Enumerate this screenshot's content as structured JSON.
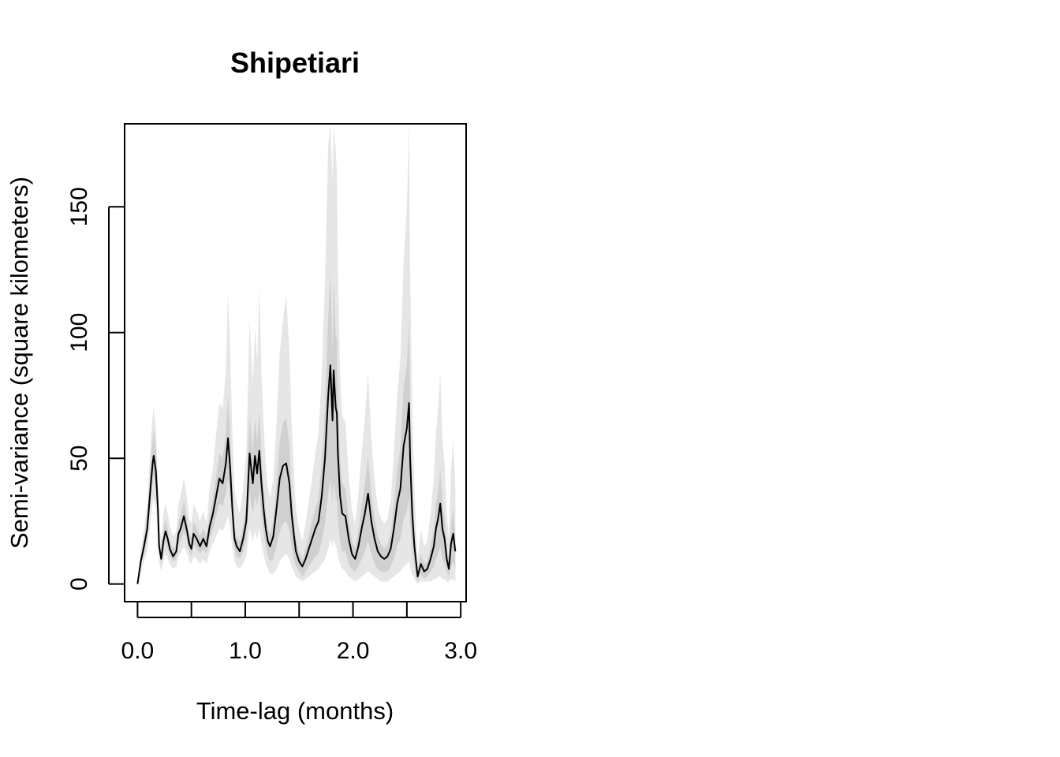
{
  "chart_data": {
    "type": "line",
    "title": "Shipetiari",
    "xlabel": "Time-lag (months)",
    "ylabel": "Semi-variance (square kilometers)",
    "xlim": [
      -0.12,
      3.05
    ],
    "ylim": [
      -7,
      183
    ],
    "xticks": [
      0.0,
      0.5,
      1.0,
      1.5,
      2.0,
      2.5,
      3.0
    ],
    "xtick_labels": [
      "0.0",
      "",
      "1.0",
      "",
      "2.0",
      "",
      "3.0"
    ],
    "yticks": [
      0,
      50,
      100,
      150
    ],
    "ytick_labels": [
      "0",
      "50",
      "100",
      "150"
    ],
    "grid": false,
    "series": [
      {
        "role": "estimate",
        "color": "#000000",
        "x": [
          0.0,
          0.03,
          0.06,
          0.09,
          0.12,
          0.14,
          0.15,
          0.17,
          0.19,
          0.2,
          0.22,
          0.24,
          0.26,
          0.28,
          0.3,
          0.33,
          0.36,
          0.38,
          0.4,
          0.43,
          0.46,
          0.48,
          0.5,
          0.52,
          0.55,
          0.58,
          0.61,
          0.64,
          0.67,
          0.7,
          0.73,
          0.76,
          0.79,
          0.82,
          0.84,
          0.86,
          0.88,
          0.9,
          0.92,
          0.95,
          0.98,
          1.01,
          1.04,
          1.07,
          1.09,
          1.11,
          1.13,
          1.15,
          1.17,
          1.19,
          1.21,
          1.23,
          1.26,
          1.29,
          1.32,
          1.35,
          1.38,
          1.41,
          1.43,
          1.45,
          1.47,
          1.5,
          1.53,
          1.56,
          1.59,
          1.62,
          1.65,
          1.68,
          1.71,
          1.74,
          1.77,
          1.79,
          1.81,
          1.82,
          1.84,
          1.85,
          1.86,
          1.88,
          1.9,
          1.93,
          1.96,
          1.99,
          2.02,
          2.05,
          2.08,
          2.11,
          2.14,
          2.17,
          2.2,
          2.23,
          2.26,
          2.29,
          2.32,
          2.35,
          2.38,
          2.41,
          2.44,
          2.47,
          2.5,
          2.52,
          2.53,
          2.55,
          2.57,
          2.6,
          2.63,
          2.66,
          2.69,
          2.72,
          2.75,
          2.77,
          2.79,
          2.81,
          2.83,
          2.85,
          2.87,
          2.89,
          2.91,
          2.93,
          2.95
        ],
        "y": [
          0,
          9,
          15,
          22,
          38,
          48,
          51,
          45,
          29,
          15,
          10,
          17,
          21,
          18,
          14,
          11,
          13,
          20,
          22,
          27,
          21,
          16,
          14,
          20,
          18,
          15,
          18,
          15,
          23,
          28,
          35,
          42,
          40,
          48,
          58,
          46,
          30,
          18,
          15,
          13,
          18,
          25,
          52,
          40,
          51,
          44,
          53,
          40,
          30,
          22,
          17,
          15,
          19,
          30,
          42,
          47,
          48,
          40,
          28,
          20,
          13,
          9,
          7,
          10,
          14,
          18,
          22,
          25,
          35,
          50,
          75,
          87,
          65,
          85,
          70,
          68,
          52,
          35,
          28,
          27,
          18,
          12,
          10,
          15,
          22,
          28,
          36,
          25,
          18,
          13,
          11,
          10,
          11,
          14,
          22,
          32,
          38,
          55,
          62,
          72,
          50,
          28,
          15,
          3,
          8,
          5,
          6,
          10,
          15,
          22,
          26,
          32,
          22,
          18,
          10,
          6,
          16,
          20,
          13
        ]
      }
    ],
    "bands": [
      {
        "role": "outer-interval",
        "color": "#e6e6e6",
        "x": [
          0.0,
          0.03,
          0.06,
          0.09,
          0.12,
          0.14,
          0.15,
          0.17,
          0.19,
          0.2,
          0.22,
          0.24,
          0.26,
          0.28,
          0.3,
          0.33,
          0.36,
          0.38,
          0.4,
          0.43,
          0.46,
          0.48,
          0.5,
          0.52,
          0.55,
          0.58,
          0.61,
          0.64,
          0.67,
          0.7,
          0.73,
          0.76,
          0.79,
          0.82,
          0.84,
          0.86,
          0.88,
          0.9,
          0.92,
          0.95,
          0.98,
          1.01,
          1.04,
          1.07,
          1.09,
          1.11,
          1.13,
          1.15,
          1.17,
          1.19,
          1.21,
          1.23,
          1.26,
          1.29,
          1.32,
          1.35,
          1.38,
          1.41,
          1.43,
          1.45,
          1.47,
          1.5,
          1.53,
          1.56,
          1.59,
          1.62,
          1.65,
          1.68,
          1.71,
          1.74,
          1.77,
          1.79,
          1.81,
          1.82,
          1.84,
          1.85,
          1.86,
          1.88,
          1.9,
          1.93,
          1.96,
          1.99,
          2.02,
          2.05,
          2.08,
          2.11,
          2.14,
          2.17,
          2.2,
          2.23,
          2.26,
          2.29,
          2.32,
          2.35,
          2.38,
          2.41,
          2.44,
          2.47,
          2.5,
          2.52,
          2.53,
          2.55,
          2.57,
          2.6,
          2.63,
          2.66,
          2.69,
          2.72,
          2.75,
          2.77,
          2.79,
          2.81,
          2.83,
          2.85,
          2.87,
          2.89,
          2.91,
          2.93,
          2.95
        ],
        "lower": [
          0,
          5,
          9,
          13,
          25,
          32,
          34,
          30,
          19,
          9,
          5,
          9,
          12,
          10,
          8,
          6,
          7,
          11,
          12,
          15,
          12,
          9,
          8,
          11,
          10,
          8,
          10,
          8,
          13,
          16,
          19,
          22,
          21,
          24,
          27,
          22,
          15,
          9,
          7,
          6,
          8,
          11,
          22,
          17,
          21,
          18,
          22,
          16,
          12,
          8,
          6,
          4,
          4,
          6,
          9,
          11,
          12,
          10,
          7,
          5,
          3,
          2,
          1,
          2,
          3,
          4,
          5,
          6,
          8,
          10,
          14,
          18,
          15,
          18,
          15,
          14,
          11,
          8,
          6,
          5,
          3,
          2,
          1,
          2,
          3,
          4,
          5,
          4,
          3,
          2,
          1,
          1,
          1,
          2,
          3,
          4,
          5,
          7,
          8,
          9,
          7,
          4,
          2,
          0,
          1,
          1,
          1,
          1,
          2,
          2,
          3,
          3,
          2,
          2,
          1,
          1,
          2,
          2,
          1
        ],
        "upper": [
          0,
          13,
          22,
          32,
          55,
          66,
          70,
          62,
          42,
          24,
          18,
          28,
          32,
          28,
          23,
          19,
          21,
          32,
          35,
          42,
          34,
          26,
          24,
          32,
          29,
          25,
          29,
          24,
          38,
          46,
          60,
          72,
          70,
          85,
          117,
          92,
          60,
          38,
          32,
          28,
          38,
          52,
          105,
          80,
          102,
          88,
          118,
          85,
          64,
          48,
          38,
          34,
          42,
          64,
          92,
          105,
          115,
          92,
          64,
          46,
          30,
          22,
          17,
          24,
          33,
          42,
          52,
          60,
          84,
          120,
          175,
          183,
          160,
          183,
          172,
          165,
          125,
          84,
          67,
          64,
          43,
          29,
          24,
          36,
          52,
          66,
          84,
          58,
          42,
          30,
          26,
          24,
          26,
          33,
          52,
          75,
          90,
          128,
          150,
          183,
          125,
          70,
          38,
          9,
          22,
          15,
          17,
          28,
          42,
          60,
          70,
          84,
          58,
          48,
          28,
          18,
          45,
          58,
          38
        ]
      },
      {
        "role": "inner-interval",
        "color": "#d0d0d0",
        "x": [
          0.0,
          0.03,
          0.06,
          0.09,
          0.12,
          0.14,
          0.15,
          0.17,
          0.19,
          0.2,
          0.22,
          0.24,
          0.26,
          0.28,
          0.3,
          0.33,
          0.36,
          0.38,
          0.4,
          0.43,
          0.46,
          0.48,
          0.5,
          0.52,
          0.55,
          0.58,
          0.61,
          0.64,
          0.67,
          0.7,
          0.73,
          0.76,
          0.79,
          0.82,
          0.84,
          0.86,
          0.88,
          0.9,
          0.92,
          0.95,
          0.98,
          1.01,
          1.04,
          1.07,
          1.09,
          1.11,
          1.13,
          1.15,
          1.17,
          1.19,
          1.21,
          1.23,
          1.26,
          1.29,
          1.32,
          1.35,
          1.38,
          1.41,
          1.43,
          1.45,
          1.47,
          1.5,
          1.53,
          1.56,
          1.59,
          1.62,
          1.65,
          1.68,
          1.71,
          1.74,
          1.77,
          1.79,
          1.81,
          1.82,
          1.84,
          1.85,
          1.86,
          1.88,
          1.9,
          1.93,
          1.96,
          1.99,
          2.02,
          2.05,
          2.08,
          2.11,
          2.14,
          2.17,
          2.2,
          2.23,
          2.26,
          2.29,
          2.32,
          2.35,
          2.38,
          2.41,
          2.44,
          2.47,
          2.5,
          2.52,
          2.53,
          2.55,
          2.57,
          2.6,
          2.63,
          2.66,
          2.69,
          2.72,
          2.75,
          2.77,
          2.79,
          2.81,
          2.83,
          2.85,
          2.87,
          2.89,
          2.91,
          2.93,
          2.95
        ],
        "lower": [
          0,
          7,
          12,
          18,
          32,
          40,
          43,
          38,
          24,
          12,
          8,
          13,
          17,
          14,
          11,
          9,
          10,
          16,
          17,
          21,
          17,
          13,
          11,
          16,
          14,
          12,
          14,
          12,
          18,
          22,
          27,
          32,
          31,
          36,
          42,
          34,
          23,
          14,
          11,
          10,
          13,
          18,
          36,
          28,
          35,
          31,
          37,
          28,
          21,
          15,
          11,
          9,
          10,
          15,
          21,
          24,
          25,
          21,
          15,
          10,
          7,
          5,
          3,
          5,
          7,
          9,
          11,
          12,
          17,
          24,
          36,
          42,
          32,
          41,
          34,
          33,
          25,
          17,
          13,
          13,
          8,
          6,
          5,
          7,
          10,
          13,
          17,
          12,
          8,
          6,
          5,
          5,
          5,
          7,
          10,
          15,
          18,
          26,
          29,
          34,
          24,
          13,
          7,
          1,
          4,
          2,
          3,
          5,
          7,
          10,
          12,
          15,
          10,
          8,
          5,
          3,
          7,
          9,
          6
        ],
        "upper": [
          0,
          11,
          18,
          27,
          45,
          57,
          61,
          54,
          36,
          19,
          13,
          21,
          26,
          22,
          17,
          14,
          16,
          25,
          27,
          33,
          26,
          20,
          18,
          25,
          22,
          19,
          22,
          19,
          28,
          34,
          43,
          52,
          50,
          60,
          75,
          58,
          38,
          23,
          19,
          17,
          23,
          32,
          67,
          52,
          66,
          57,
          69,
          52,
          39,
          29,
          22,
          20,
          25,
          40,
          57,
          64,
          66,
          55,
          38,
          27,
          18,
          13,
          10,
          14,
          19,
          25,
          30,
          34,
          48,
          70,
          106,
          124,
          92,
          121,
          99,
          97,
          74,
          50,
          40,
          38,
          26,
          17,
          14,
          21,
          31,
          40,
          51,
          36,
          26,
          19,
          16,
          14,
          16,
          20,
          31,
          46,
          54,
          78,
          88,
          104,
          72,
          40,
          22,
          5,
          12,
          8,
          9,
          15,
          22,
          32,
          37,
          46,
          32,
          26,
          15,
          9,
          24,
          30,
          20
        ]
      }
    ]
  }
}
